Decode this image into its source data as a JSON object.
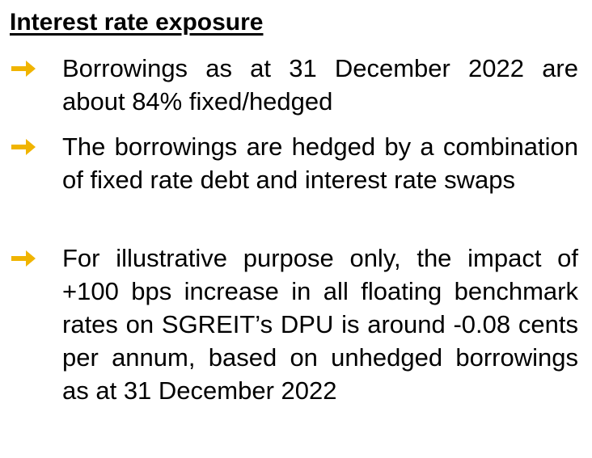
{
  "title": "Interest rate exposure",
  "bullets": [
    "Borrowings as at 31 December 2022 are about 84% fixed/hedged",
    "The borrowings are hedged by a combination of fixed rate debt and interest rate swaps",
    "For illustrative purpose only, the impact of +100 bps increase in all floating benchmark rates on SGREIT’s DPU is around -0.08 cents per annum, based on unhedged borrowings as at 31 December 2022"
  ]
}
